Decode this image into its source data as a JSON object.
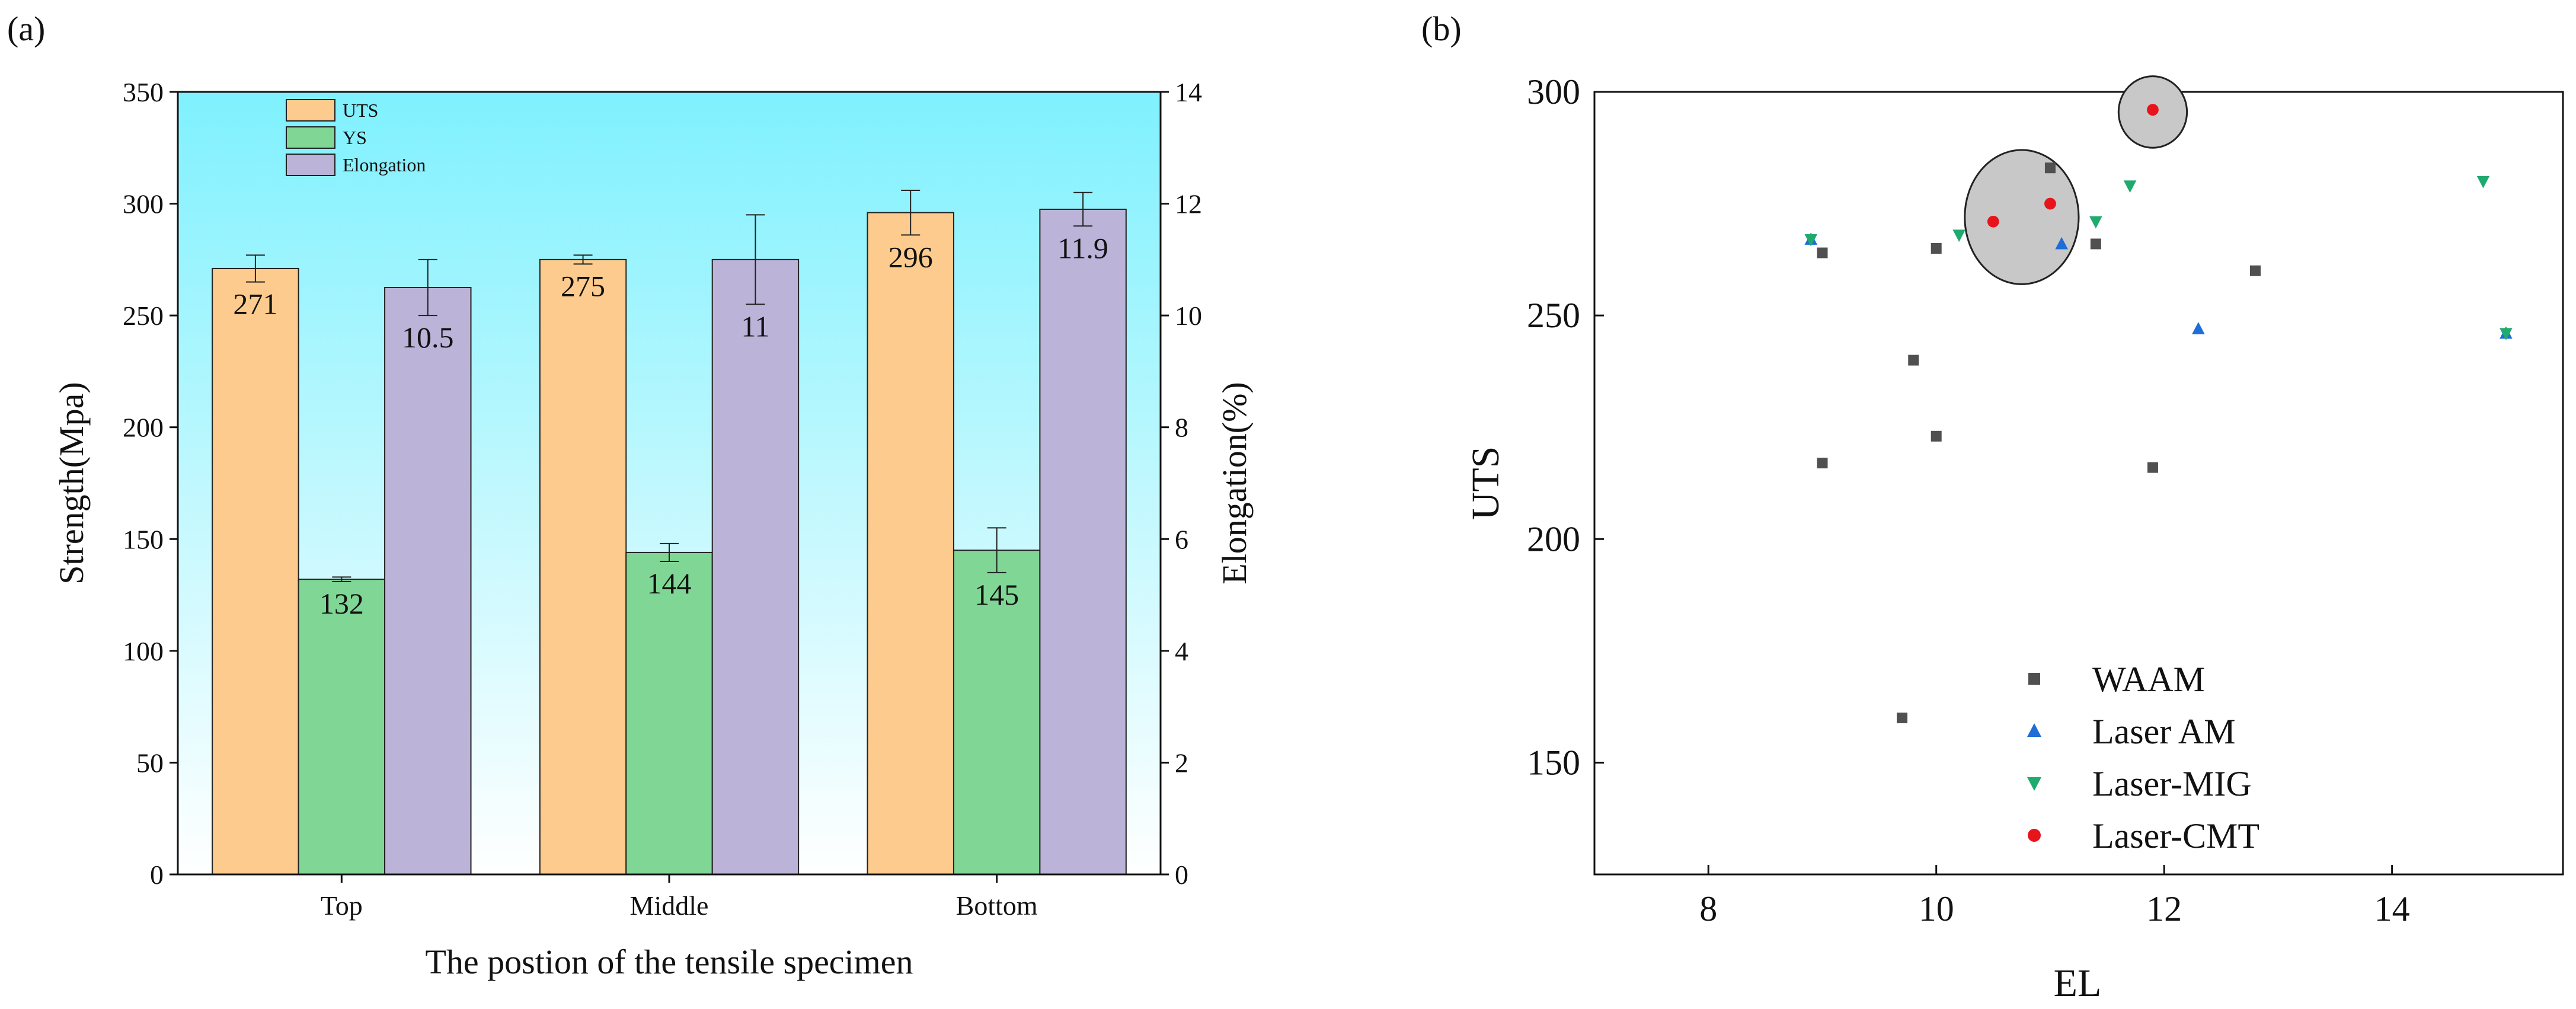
{
  "panel_a": {
    "label": "(a)",
    "chart_data": {
      "type": "bar",
      "categories": [
        "Top",
        "Middle",
        "Bottom"
      ],
      "series": [
        {
          "name": "UTS",
          "axis": "left",
          "values": [
            271,
            275,
            296
          ],
          "errors": [
            6,
            2,
            10
          ],
          "labels": [
            "271",
            "275",
            "296"
          ],
          "color": "#FDCB8D"
        },
        {
          "name": "YS",
          "axis": "left",
          "values": [
            132,
            144,
            145
          ],
          "errors": [
            1,
            4,
            10
          ],
          "labels": [
            "132",
            "144",
            "145"
          ],
          "color": "#80D695"
        },
        {
          "name": "Elongation",
          "axis": "right",
          "values": [
            10.5,
            11,
            11.9
          ],
          "errors": [
            0.5,
            0.8,
            0.3
          ],
          "labels": [
            "10.5",
            "11",
            "11.9"
          ],
          "color": "#BCB3D8"
        }
      ],
      "xlabel": "The postion of the tensile specimen",
      "ylabel": "Strength(Mpa)",
      "y2label": "Elongation(%)",
      "ylim": [
        0,
        350
      ],
      "y2lim": [
        0,
        14
      ],
      "yticks": [
        "0",
        "50",
        "100",
        "150",
        "200",
        "250",
        "300",
        "350"
      ],
      "y2ticks": [
        "0",
        "2",
        "4",
        "6",
        "8",
        "10",
        "12",
        "14"
      ],
      "legend_position": "top-left",
      "background_gradient": [
        "#7FF1FE",
        "#FFFFFF"
      ]
    }
  },
  "panel_b": {
    "label": "(b)",
    "chart_data": {
      "type": "scatter",
      "xlabel": "EL",
      "ylabel": "UTS",
      "xlim": [
        7,
        15.5
      ],
      "ylim": [
        125,
        300
      ],
      "xticks": [
        "8",
        "10",
        "12",
        "14"
      ],
      "yticks": [
        "150",
        "200",
        "250",
        "300"
      ],
      "legend_position": "bottom-center",
      "series": [
        {
          "name": "WAAM",
          "marker": "square",
          "color": "#505050",
          "points": [
            [
              9,
              264
            ],
            [
              9,
              217
            ],
            [
              9.8,
              240
            ],
            [
              10,
              265
            ],
            [
              10,
              223
            ],
            [
              11,
              283
            ],
            [
              11.4,
              266
            ],
            [
              12.8,
              260
            ],
            [
              11.9,
              216
            ],
            [
              9.7,
              160
            ]
          ]
        },
        {
          "name": "Laser AM",
          "marker": "triangle-up",
          "color": "#1F6DD6",
          "points": [
            [
              8.9,
              267
            ],
            [
              11.1,
              266
            ],
            [
              12.3,
              247
            ],
            [
              15,
              246
            ]
          ]
        },
        {
          "name": "Laser-MIG",
          "marker": "triangle-down",
          "color": "#1FAA6E",
          "points": [
            [
              8.9,
              267
            ],
            [
              10.2,
              268
            ],
            [
              11.4,
              271
            ],
            [
              11.7,
              279
            ],
            [
              14.8,
              280
            ],
            [
              15,
              246
            ]
          ]
        },
        {
          "name": "Laser-CMT",
          "marker": "circle",
          "color": "#E8141C",
          "points": [
            [
              10.5,
              271
            ],
            [
              11,
              275
            ],
            [
              11.9,
              296
            ]
          ]
        }
      ],
      "highlight_ellipses": [
        {
          "center": [
            10.75,
            272
          ],
          "radius": [
            0.5,
            15
          ]
        },
        {
          "center": [
            11.9,
            295.5
          ],
          "radius": [
            0.3,
            8
          ]
        }
      ]
    }
  }
}
